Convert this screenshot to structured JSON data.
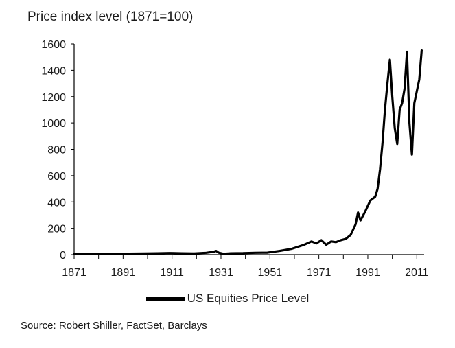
{
  "chart_data": {
    "type": "line",
    "ylabel": "Price index level (1871=100)",
    "ylim": [
      0,
      1600
    ],
    "yticks": [
      "0",
      "200",
      "400",
      "600",
      "800",
      "1000",
      "1200",
      "1400",
      "1600"
    ],
    "xlim": [
      1871,
      2014
    ],
    "xticks": [
      "1871",
      "1891",
      "1911",
      "1931",
      "1951",
      "1971",
      "1991",
      "2011"
    ],
    "grid": false,
    "legend_position": "bottom",
    "series": [
      {
        "name": "US Equities Price Level",
        "color": "#000000",
        "x": [
          1871,
          1880,
          1890,
          1900,
          1905,
          1910,
          1915,
          1920,
          1925,
          1928,
          1929,
          1930,
          1932,
          1935,
          1940,
          1945,
          1950,
          1955,
          1960,
          1965,
          1968,
          1970,
          1972,
          1974,
          1976,
          1978,
          1980,
          1982,
          1984,
          1986,
          1987,
          1988,
          1990,
          1992,
          1994,
          1995,
          1996,
          1997,
          1998,
          1999,
          2000,
          2001,
          2002,
          2003,
          2004,
          2005,
          2006,
          2007,
          2008,
          2009,
          2010,
          2011,
          2012,
          2013
        ],
        "y": [
          5,
          6,
          7,
          9,
          10,
          12,
          10,
          9,
          14,
          22,
          28,
          15,
          6,
          10,
          11,
          14,
          15,
          28,
          45,
          75,
          100,
          85,
          110,
          75,
          100,
          95,
          110,
          120,
          150,
          230,
          320,
          260,
          330,
          410,
          440,
          500,
          650,
          850,
          1100,
          1300,
          1480,
          1200,
          960,
          840,
          1100,
          1150,
          1260,
          1540,
          1000,
          760,
          1150,
          1240,
          1330,
          1550
        ]
      }
    ],
    "source": "Source: Robert Shiller, FactSet, Barclays"
  }
}
